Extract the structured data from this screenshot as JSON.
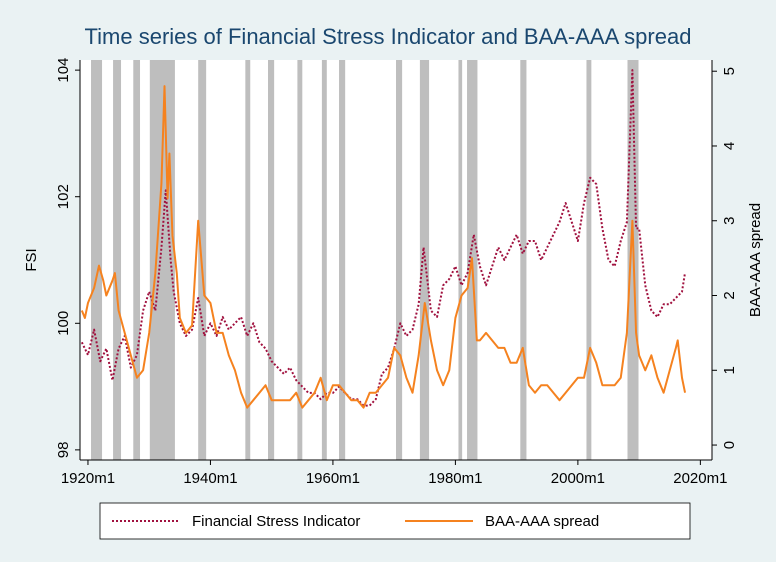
{
  "chart_data": {
    "type": "line",
    "title": "Time series of Financial Stress Indicator and BAA-AAA spread",
    "ylabel": "FSI",
    "y2label": "BAA-AAA spread",
    "xlim": [
      1918.7,
      2021.9
    ],
    "xticks": [
      {
        "value": 1920,
        "label": "1920m1"
      },
      {
        "value": 1940,
        "label": "1940m1"
      },
      {
        "value": 1960,
        "label": "1960m1"
      },
      {
        "value": 1980,
        "label": "1980m1"
      },
      {
        "value": 2000,
        "label": "2000m1"
      },
      {
        "value": 2020,
        "label": "2020m1"
      }
    ],
    "ylim": [
      97.84,
      104.16
    ],
    "yticks": [
      98,
      100,
      102,
      104
    ],
    "y2lim": [
      -0.2,
      5.15
    ],
    "y2ticks": [
      0,
      1,
      2,
      3,
      4,
      5
    ],
    "recession_color": "#bebebe",
    "recessions": [
      [
        1920.5,
        1922.3
      ],
      [
        1924.1,
        1925.4
      ],
      [
        1927.4,
        1928.5
      ],
      [
        1930.1,
        1934.2
      ],
      [
        1938.0,
        1939.3
      ],
      [
        1945.7,
        1946.5
      ],
      [
        1949.4,
        1950.4
      ],
      [
        1954.2,
        1955.0
      ],
      [
        1958.2,
        1959.0
      ],
      [
        1961.0,
        1962.0
      ],
      [
        1970.3,
        1971.3
      ],
      [
        1974.2,
        1975.7
      ],
      [
        1980.5,
        1981.1
      ],
      [
        1981.9,
        1983.6
      ],
      [
        1990.6,
        1991.6
      ],
      [
        2001.4,
        2002.2
      ],
      [
        2008.1,
        2009.9
      ]
    ],
    "legend": "bottom",
    "series": [
      {
        "name": "Financial Stress Indicator",
        "color": "#a0103e",
        "dash": "dotted",
        "x": [
          1919,
          1920,
          1921,
          1922,
          1923,
          1924,
          1925,
          1926,
          1927,
          1928,
          1929,
          1930,
          1931,
          1932,
          1932.7,
          1933.5,
          1934,
          1935,
          1936,
          1937,
          1938,
          1939,
          1940,
          1941,
          1942,
          1943,
          1944,
          1945,
          1946,
          1947,
          1948,
          1949,
          1950,
          1951,
          1952,
          1953,
          1954,
          1955,
          1956,
          1957,
          1958,
          1959,
          1960,
          1961,
          1962,
          1963,
          1964,
          1965,
          1966,
          1967,
          1968,
          1969,
          1970,
          1971,
          1972,
          1973,
          1974,
          1974.8,
          1976,
          1977,
          1978,
          1979,
          1980,
          1981,
          1982,
          1983,
          1984,
          1985,
          1986,
          1987,
          1988,
          1989,
          1990,
          1991,
          1992,
          1993,
          1994,
          1995,
          1996,
          1997,
          1998,
          1999,
          2000,
          2001,
          2002,
          2003,
          2004,
          2005,
          2006,
          2007,
          2008,
          2008.9,
          2009.5,
          2010,
          2011,
          2012,
          2013,
          2014,
          2015,
          2016,
          2017,
          2017.5
        ],
        "values": [
          99.7,
          99.5,
          99.9,
          99.4,
          99.6,
          99.1,
          99.6,
          99.8,
          99.3,
          99.5,
          100.2,
          100.5,
          100.2,
          101.2,
          102.1,
          101.0,
          100.5,
          100.0,
          99.8,
          99.9,
          100.4,
          99.8,
          100.0,
          99.8,
          100.1,
          99.9,
          100.0,
          100.1,
          99.8,
          100.0,
          99.7,
          99.6,
          99.4,
          99.3,
          99.2,
          99.3,
          99.1,
          99.0,
          98.9,
          98.9,
          98.8,
          98.9,
          98.9,
          99.0,
          98.9,
          98.8,
          98.8,
          98.7,
          98.7,
          98.8,
          99.2,
          99.3,
          99.6,
          100.0,
          99.8,
          99.9,
          100.3,
          101.2,
          100.2,
          100.1,
          100.6,
          100.7,
          100.9,
          100.6,
          100.8,
          101.4,
          100.9,
          100.6,
          100.9,
          101.2,
          101.0,
          101.2,
          101.4,
          101.1,
          101.3,
          101.3,
          101.0,
          101.2,
          101.4,
          101.6,
          101.9,
          101.6,
          101.3,
          101.9,
          102.3,
          102.2,
          101.5,
          101.0,
          100.9,
          101.3,
          101.6,
          104.0,
          101.5,
          101.5,
          100.6,
          100.2,
          100.1,
          100.3,
          100.3,
          100.4,
          100.5,
          100.8
        ]
      },
      {
        "name": "BAA-AAA spread",
        "color": "#f5821f",
        "axis": "y2",
        "x": [
          1919,
          1919.5,
          1920,
          1921,
          1921.8,
          1922.5,
          1923,
          1924,
          1924.4,
          1925,
          1926,
          1927,
          1928,
          1929,
          1930,
          1931,
          1932,
          1932.5,
          1933,
          1933.3,
          1933.8,
          1934.5,
          1935,
          1936,
          1937,
          1938,
          1939,
          1940,
          1941,
          1942,
          1943,
          1944,
          1945,
          1946,
          1947,
          1948,
          1949,
          1950,
          1951,
          1952,
          1953,
          1954,
          1955,
          1956,
          1957,
          1958,
          1959,
          1960,
          1961,
          1962,
          1963,
          1964,
          1965,
          1966,
          1967,
          1968,
          1969,
          1970,
          1971,
          1972,
          1973,
          1974,
          1975,
          1976,
          1977,
          1978,
          1979,
          1980,
          1981,
          1982,
          1982.7,
          1983.5,
          1984,
          1985,
          1986,
          1987,
          1988,
          1989,
          1990,
          1991,
          1992,
          1993,
          1994,
          1995,
          1996,
          1997,
          1998,
          1999,
          2000,
          2001,
          2002,
          2003,
          2004,
          2005,
          2006,
          2007,
          2008,
          2008.9,
          2009.5,
          2010,
          2011,
          2012,
          2013,
          2014,
          2015,
          2016,
          2016.3,
          2017,
          2017.5
        ],
        "values": [
          1.8,
          1.7,
          1.9,
          2.1,
          2.4,
          2.2,
          2.0,
          2.2,
          2.3,
          1.8,
          1.5,
          1.2,
          0.9,
          1.0,
          1.5,
          2.3,
          3.5,
          4.8,
          3.3,
          3.9,
          2.8,
          2.3,
          1.7,
          1.5,
          1.6,
          3.0,
          2.0,
          1.9,
          1.5,
          1.5,
          1.2,
          1.0,
          0.7,
          0.5,
          0.6,
          0.7,
          0.8,
          0.6,
          0.6,
          0.6,
          0.6,
          0.7,
          0.5,
          0.6,
          0.7,
          0.9,
          0.6,
          0.8,
          0.8,
          0.7,
          0.6,
          0.6,
          0.5,
          0.7,
          0.7,
          0.8,
          0.9,
          1.3,
          1.2,
          0.9,
          0.7,
          1.2,
          1.9,
          1.4,
          1.0,
          0.8,
          1.0,
          1.7,
          2.0,
          2.1,
          2.5,
          1.4,
          1.4,
          1.5,
          1.4,
          1.3,
          1.3,
          1.1,
          1.1,
          1.3,
          0.8,
          0.7,
          0.8,
          0.8,
          0.7,
          0.6,
          0.7,
          0.8,
          0.9,
          0.9,
          1.3,
          1.1,
          0.8,
          0.8,
          0.8,
          0.9,
          1.5,
          3.0,
          1.5,
          1.2,
          1.0,
          1.2,
          0.9,
          0.7,
          1.0,
          1.3,
          1.4,
          0.9,
          0.7
        ]
      }
    ]
  }
}
